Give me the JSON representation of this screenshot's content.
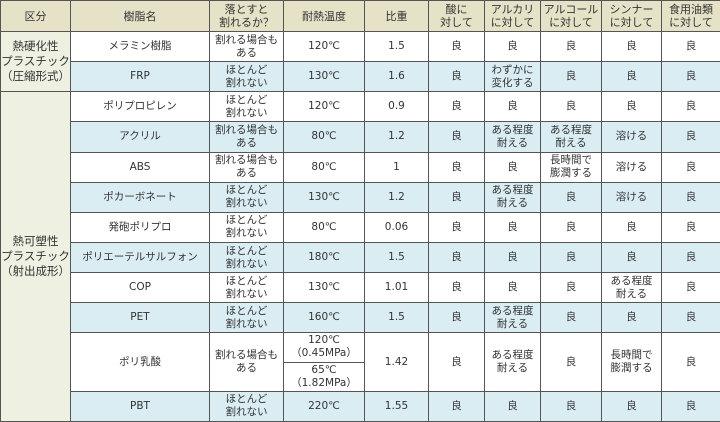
{
  "headers": [
    "区分",
    "樹脂名",
    "落とすと\n割れるか？",
    "耐熱温度",
    "比重",
    "酸に\n対して",
    "アルカリ\nに対して",
    "アルコール\nに対して",
    "シンナー\nに対して",
    "食用油類\nに対して"
  ],
  "categories": [
    {
      "label": "熱硬化性\nプラスチック\n（圧縮形式）",
      "rows": 2
    },
    {
      "label": "熱可塑性\nプラスチック\n（射出成形）",
      "rows": 10
    }
  ],
  "rows": [
    {
      "name": "メラミン樹脂",
      "drop": "割れる場合も\nある",
      "heat": [
        "120℃"
      ],
      "gravity": "1.5",
      "acid": "良",
      "alkali": "良",
      "alcohol": "良",
      "thinner": "良",
      "oil": "良"
    },
    {
      "name": "FRP",
      "drop": "ほとんど\n割れない",
      "heat": [
        "130℃"
      ],
      "gravity": "1.6",
      "acid": "良",
      "alkali": "わずかに\n変化する",
      "alcohol": "良",
      "thinner": "良",
      "oil": "良"
    },
    {
      "name": "ポリプロピレン",
      "drop": "ほとんど\n割れない",
      "heat": [
        "120℃"
      ],
      "gravity": "0.9",
      "acid": "良",
      "alkali": "良",
      "alcohol": "良",
      "thinner": "良",
      "oil": "良"
    },
    {
      "name": "アクリル",
      "drop": "割れる場合も\nある",
      "heat": [
        "80℃"
      ],
      "gravity": "1.2",
      "acid": "良",
      "alkali": "ある程度\n耐える",
      "alcohol": "ある程度\n耐える",
      "thinner": "溶ける",
      "oil": "良"
    },
    {
      "name": "ABS",
      "drop": "割れる場合も\nある",
      "heat": [
        "80℃"
      ],
      "gravity": "1",
      "acid": "良",
      "alkali": "良",
      "alcohol": "長時間で\n膨潤する",
      "thinner": "溶ける",
      "oil": "良"
    },
    {
      "name": "ポカーボネート",
      "drop": "ほとんど\n割れない",
      "heat": [
        "130℃"
      ],
      "gravity": "1.2",
      "acid": "良",
      "alkali": "ある程度\n耐える",
      "alcohol": "良",
      "thinner": "溶ける",
      "oil": "良"
    },
    {
      "name": "発砲ポリプロ",
      "drop": "ほとんど\n割れない",
      "heat": [
        "80℃"
      ],
      "gravity": "0.06",
      "acid": "良",
      "alkali": "良",
      "alcohol": "良",
      "thinner": "良",
      "oil": "良"
    },
    {
      "name": "ポリエーテルサルフォン",
      "drop": "ほとんど\n割れない",
      "heat": [
        "180℃"
      ],
      "gravity": "1.5",
      "acid": "良",
      "alkali": "良",
      "alcohol": "良",
      "thinner": "良",
      "oil": "良"
    },
    {
      "name": "COP",
      "drop": "ほとんど\n割れない",
      "heat": [
        "130℃"
      ],
      "gravity": "1.01",
      "acid": "良",
      "alkali": "良",
      "alcohol": "良",
      "thinner": "ある程度\n耐える",
      "oil": "良"
    },
    {
      "name": "PET",
      "drop": "ほとんど\n割れない",
      "heat": [
        "160℃"
      ],
      "gravity": "1.5",
      "acid": "良",
      "alkali": "ある程度\n耐える",
      "alcohol": "良",
      "thinner": "良",
      "oil": "良"
    },
    {
      "name": "ポリ乳酸",
      "drop": "割れる場合も\nある",
      "heat": [
        "120℃\n（0.45MPa）",
        "65℃\n（1.82MPa）"
      ],
      "gravity": "1.42",
      "acid": "良",
      "alkali": "ある程度\n耐える",
      "alcohol": "良",
      "thinner": "長時間で\n膨潤する",
      "oil": "良"
    },
    {
      "name": "PBT",
      "drop": "ほとんど\n割れない",
      "heat": [
        "220℃"
      ],
      "gravity": "1.55",
      "acid": "良",
      "alkali": "良",
      "alcohol": "良",
      "thinner": "良",
      "oil": "良"
    }
  ],
  "colors": {
    "header": "#e6e2c8",
    "category": "#eef0e2",
    "row_alt": "#daedf3",
    "border": "#555555"
  }
}
